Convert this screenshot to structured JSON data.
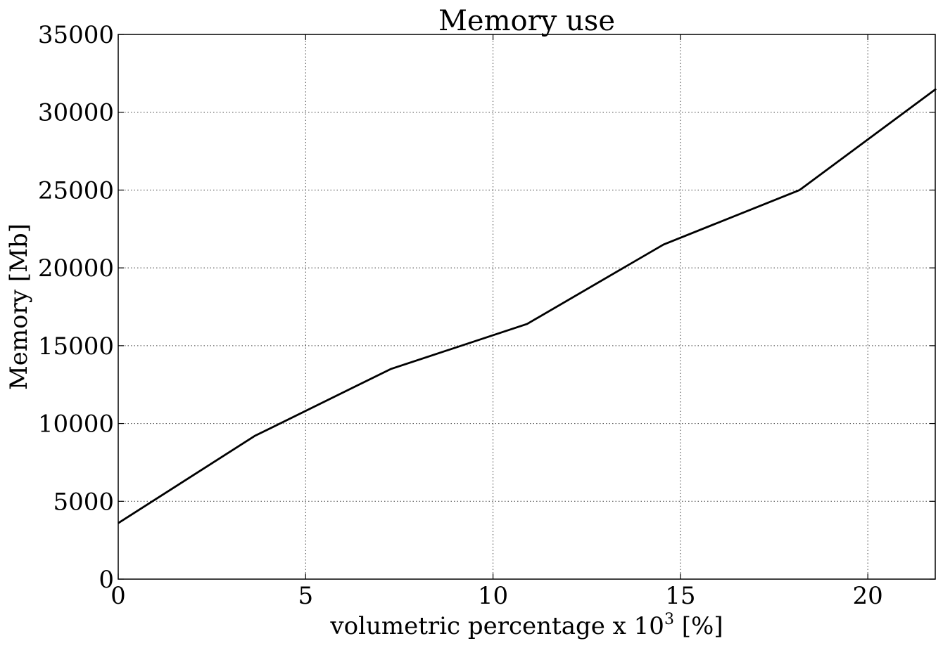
{
  "chart_data": {
    "type": "line",
    "title": "Memory use",
    "xlabel": "volumetric percentage x 10",
    "xlabel_exponent": "3",
    "xlabel_suffix": " [%]",
    "ylabel": "Memory [Mb]",
    "xlim": [
      0,
      21.8
    ],
    "ylim": [
      0,
      35000
    ],
    "xticks": [
      0,
      5,
      10,
      15,
      20
    ],
    "yticks": [
      0,
      5000,
      10000,
      15000,
      20000,
      25000,
      30000,
      35000
    ],
    "grid": true,
    "series": [
      {
        "color": "#000000",
        "x": [
          0,
          3.64,
          7.27,
          10.91,
          14.55,
          18.18,
          21.82
        ],
        "y": [
          3600,
          9200,
          13500,
          16400,
          21500,
          25000,
          31500
        ]
      }
    ]
  }
}
